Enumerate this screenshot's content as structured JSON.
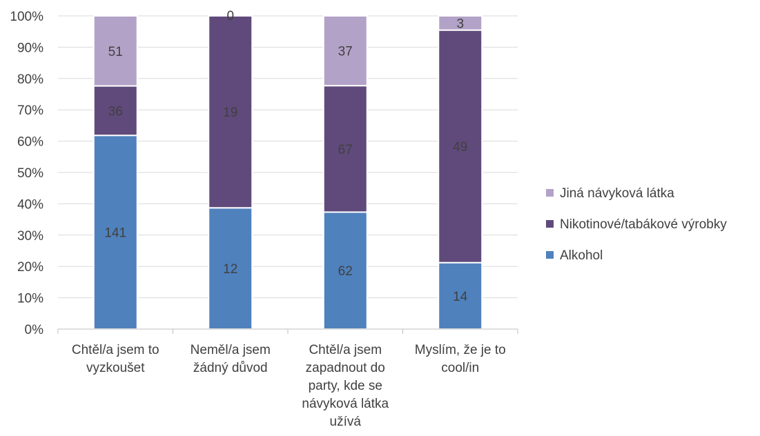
{
  "chart_data": {
    "type": "bar",
    "stacked": "percent",
    "title": "",
    "xlabel": "",
    "ylabel": "",
    "ylim": [
      0,
      100
    ],
    "y_ticks": [
      "0%",
      "10%",
      "20%",
      "30%",
      "40%",
      "50%",
      "60%",
      "70%",
      "80%",
      "90%",
      "100%"
    ],
    "grid": "horizontal",
    "legend_position": "right",
    "categories": [
      [
        "Chtěl/a jsem to",
        "vyzkoušet"
      ],
      [
        "Neměl/a jsem",
        "žádný důvod"
      ],
      [
        "Chtěl/a jsem",
        "zapadnout do",
        "party, kde se",
        "návyková látka",
        "užívá"
      ],
      [
        "Myslím, že je to",
        "cool/in"
      ]
    ],
    "series": [
      {
        "name": "Alkohol",
        "color": "#4f81bd",
        "values": [
          141,
          12,
          62,
          14
        ]
      },
      {
        "name": "Nikotinové/tabákové výrobky",
        "color": "#604a7b",
        "values": [
          36,
          19,
          67,
          49
        ]
      },
      {
        "name": "Jiná návyková látka",
        "color": "#b3a2c7",
        "values": [
          51,
          0,
          37,
          3
        ]
      }
    ],
    "legend_order": [
      2,
      1,
      0
    ]
  }
}
